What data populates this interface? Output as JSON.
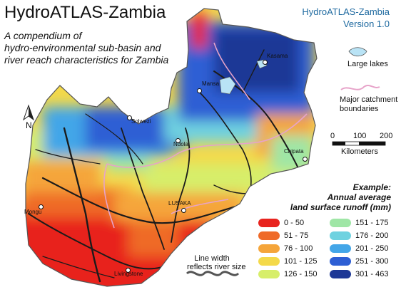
{
  "header": {
    "title": "HydroATLAS-Zambia",
    "subtitle_lines": [
      "A compendium of",
      "hydro-environmental sub-basin and",
      "river reach characteristics for Zambia"
    ],
    "version_lines": [
      "HydroATLAS-Zambia",
      "Version 1.0"
    ]
  },
  "legend_side": {
    "lakes_label": "Large lakes",
    "catchment_label_lines": [
      "Major catchment",
      "boundaries"
    ],
    "scale_ticks": [
      "0",
      "100",
      "200"
    ],
    "scale_unit": "Kilometers",
    "north_label": "N",
    "line_width_lines": [
      "Line width",
      "reflects river size"
    ]
  },
  "legend_main": {
    "example_lines": [
      "Example:",
      "Annual average",
      "land surface runoff (mm)"
    ],
    "classes_left": [
      {
        "label": "0 - 50",
        "color": "#e8231e"
      },
      {
        "label": "51 - 75",
        "color": "#ef6a28"
      },
      {
        "label": "76 - 100",
        "color": "#f5a53a"
      },
      {
        "label": "101 - 125",
        "color": "#f4d94a"
      },
      {
        "label": "126 - 150",
        "color": "#d7ee6a"
      }
    ],
    "classes_right": [
      {
        "label": "151 - 175",
        "color": "#9fe6a6"
      },
      {
        "label": "176 - 200",
        "color": "#6fd2e0"
      },
      {
        "label": "201 - 250",
        "color": "#43a6e8"
      },
      {
        "label": "251 - 300",
        "color": "#2e5fd4"
      },
      {
        "label": "301 - 463",
        "color": "#1d3896"
      }
    ]
  },
  "cities": {
    "kasama": "Kasama",
    "mansa": "Mansa",
    "solwezi": "Solwezi",
    "ndola": "Ndola",
    "chipata": "Chipata",
    "lusaka": "LUSAKA",
    "mongu": "Mongu",
    "livingstone": "Livingstone"
  },
  "colors": {
    "lake": "#b9e3f5",
    "catchment": "#e7a3c9",
    "river": "#1b1b1b",
    "title_accent": "#1f6aa0"
  }
}
